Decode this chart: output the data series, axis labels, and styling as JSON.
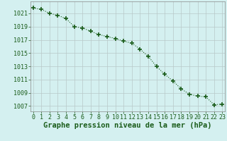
{
  "x": [
    0,
    1,
    2,
    3,
    4,
    5,
    6,
    7,
    8,
    9,
    10,
    11,
    12,
    13,
    14,
    15,
    16,
    17,
    18,
    19,
    20,
    21,
    22,
    23
  ],
  "y": [
    1021.8,
    1021.6,
    1021.0,
    1020.7,
    1020.2,
    1019.0,
    1018.8,
    1018.3,
    1017.8,
    1017.5,
    1017.2,
    1016.8,
    1016.5,
    1015.6,
    1014.5,
    1013.0,
    1011.8,
    1010.8,
    1009.6,
    1008.8,
    1008.5,
    1008.4,
    1007.2,
    1007.3
  ],
  "line_color": "#1a5c1a",
  "marker": "+",
  "marker_size": 4,
  "marker_edge_width": 1.2,
  "line_width": 0.8,
  "bg_color": "#d4f0f0",
  "grid_color": "#b8c8c8",
  "xlabel": "Graphe pression niveau de la mer (hPa)",
  "xlabel_fontsize": 7.5,
  "xtick_labels": [
    "0",
    "1",
    "2",
    "3",
    "4",
    "5",
    "6",
    "7",
    "8",
    "9",
    "10",
    "11",
    "12",
    "13",
    "14",
    "15",
    "16",
    "17",
    "18",
    "19",
    "20",
    "21",
    "22",
    "23"
  ],
  "ytick_values": [
    1007,
    1009,
    1011,
    1013,
    1015,
    1017,
    1019,
    1021
  ],
  "ylim": [
    1006.2,
    1022.8
  ],
  "xlim": [
    -0.3,
    23.3
  ],
  "tick_fontsize": 6.0,
  "tick_color": "#1a5c1a",
  "xlabel_color": "#1a5c1a",
  "spine_color": "#888888"
}
